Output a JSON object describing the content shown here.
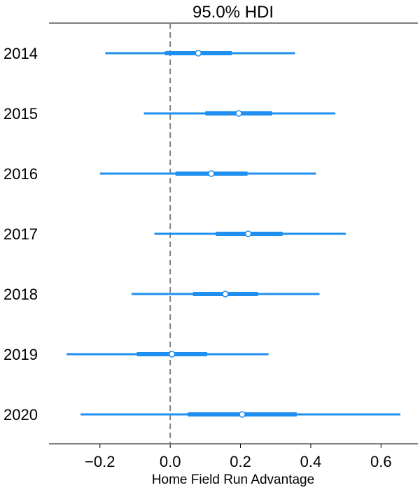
{
  "chart_data": {
    "type": "forest",
    "title": "95.0% HDI",
    "xlabel": "Home Field Run Advantage",
    "xlim": [
      -0.345,
      0.705
    ],
    "xticks": [
      -0.2,
      0.0,
      0.2,
      0.4,
      0.6
    ],
    "xtick_labels": [
      "−0.2",
      "0.0",
      "0.2",
      "0.4",
      "0.6"
    ],
    "reference_line": 0.0,
    "rows": [
      {
        "label": "2014",
        "hdi_low": -0.185,
        "hdi_high": 0.355,
        "iqr_low": -0.015,
        "iqr_high": 0.175,
        "mean": 0.08
      },
      {
        "label": "2015",
        "hdi_low": -0.075,
        "hdi_high": 0.47,
        "iqr_low": 0.1,
        "iqr_high": 0.29,
        "mean": 0.195
      },
      {
        "label": "2016",
        "hdi_low": -0.2,
        "hdi_high": 0.415,
        "iqr_low": 0.015,
        "iqr_high": 0.22,
        "mean": 0.117
      },
      {
        "label": "2017",
        "hdi_low": -0.045,
        "hdi_high": 0.5,
        "iqr_low": 0.13,
        "iqr_high": 0.32,
        "mean": 0.222
      },
      {
        "label": "2018",
        "hdi_low": -0.11,
        "hdi_high": 0.425,
        "iqr_low": 0.065,
        "iqr_high": 0.25,
        "mean": 0.157
      },
      {
        "label": "2019",
        "hdi_low": -0.295,
        "hdi_high": 0.28,
        "iqr_low": -0.095,
        "iqr_high": 0.105,
        "mean": 0.005
      },
      {
        "label": "2020",
        "hdi_low": -0.255,
        "hdi_high": 0.655,
        "iqr_low": 0.05,
        "iqr_high": 0.36,
        "mean": 0.205
      }
    ],
    "colors": {
      "interval": "#1f8ff0",
      "reference": "#808080",
      "axis": "#000000",
      "marker_fill": "#ffffff"
    }
  }
}
